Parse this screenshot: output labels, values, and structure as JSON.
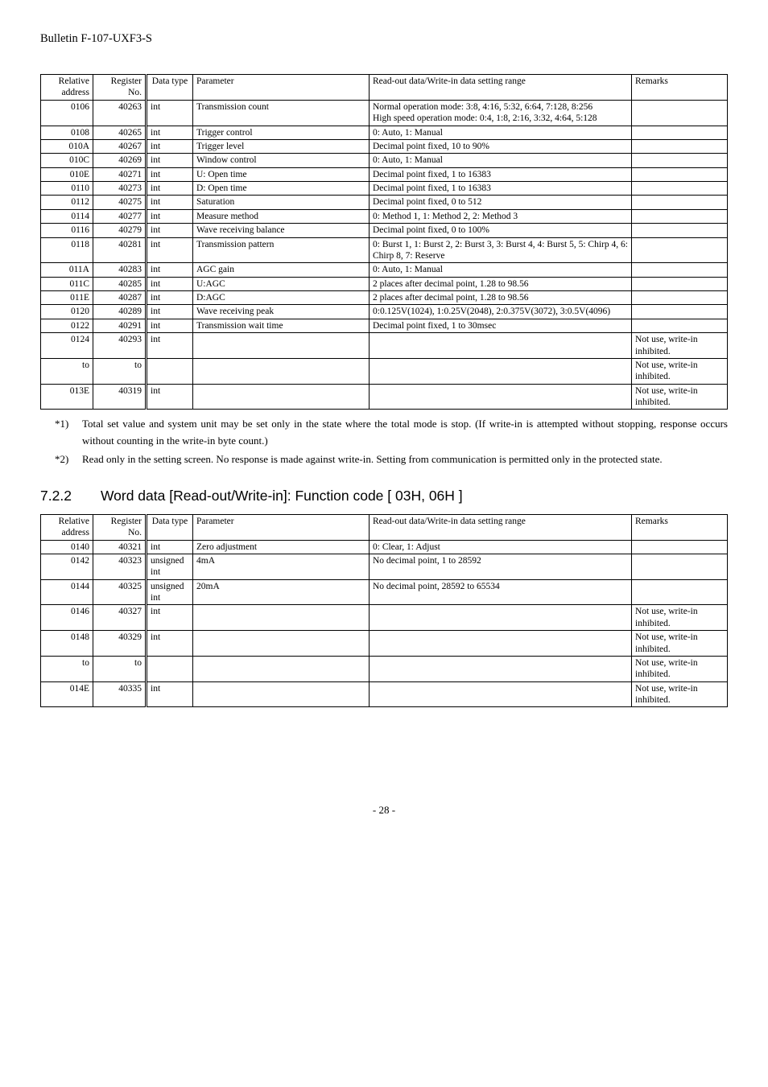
{
  "header": "Bulletin F-107-UXF3-S",
  "table1": {
    "columns": [
      "Relative address",
      "Register No.",
      "Data type",
      "Parameter",
      "Read-out data/Write-in data    setting range",
      "Remarks"
    ],
    "rows": [
      {
        "addr": "0106",
        "reg": "40263",
        "type": "int",
        "param": "Transmission count",
        "readout": "Normal operation mode:    3:8, 4:16, 5:32, 6:64, 7:128, 8:256\nHigh speed operation mode:    0:4, 1:8, 2:16, 3:32, 4:64, 5:128",
        "remarks": ""
      },
      {
        "addr": "0108",
        "reg": "40265",
        "type": "int",
        "param": "Trigger control",
        "readout": "0: Auto, 1: Manual",
        "remarks": ""
      },
      {
        "addr": "010A",
        "reg": "40267",
        "type": "int",
        "param": "Trigger level",
        "readout": "Decimal point fixed, 10 to 90%",
        "remarks": ""
      },
      {
        "addr": "010C",
        "reg": "40269",
        "type": "int",
        "param": "Window control",
        "readout": "0: Auto, 1: Manual",
        "remarks": ""
      },
      {
        "addr": "010E",
        "reg": "40271",
        "type": "int",
        "param": "U: Open time",
        "readout": "Decimal point fixed, 1 to 16383",
        "remarks": ""
      },
      {
        "addr": "0110",
        "reg": "40273",
        "type": "int",
        "param": "D: Open time",
        "readout": "Decimal point fixed, 1 to 16383",
        "remarks": ""
      },
      {
        "addr": "0112",
        "reg": "40275",
        "type": "int",
        "param": "Saturation",
        "readout": "Decimal point fixed, 0 to 512",
        "remarks": ""
      },
      {
        "addr": "0114",
        "reg": "40277",
        "type": "int",
        "param": "Measure method",
        "readout": "0: Method 1, 1: Method 2, 2: Method 3",
        "remarks": ""
      },
      {
        "addr": "0116",
        "reg": "40279",
        "type": "int",
        "param": "Wave receiving balance",
        "readout": "Decimal point fixed, 0 to 100%",
        "remarks": ""
      },
      {
        "addr": "0118",
        "reg": "40281",
        "type": "int",
        "param": "Transmission pattern",
        "readout": "0: Burst 1, 1: Burst 2, 2: Burst 3, 3: Burst 4, 4: Burst 5, 5: Chirp 4, 6: Chirp 8, 7: Reserve",
        "remarks": ""
      },
      {
        "addr": "011A",
        "reg": "40283",
        "type": "int",
        "param": "AGC gain",
        "readout": "0: Auto, 1: Manual",
        "remarks": ""
      },
      {
        "addr": "011C",
        "reg": "40285",
        "type": "int",
        "param": "U:AGC",
        "readout": "2 places after decimal point, 1.28 to 98.56",
        "remarks": ""
      },
      {
        "addr": "011E",
        "reg": "40287",
        "type": "int",
        "param": "D:AGC",
        "readout": "2 places after decimal point, 1.28 to 98.56",
        "remarks": ""
      },
      {
        "addr": "0120",
        "reg": "40289",
        "type": "int",
        "param": "Wave receiving peak",
        "readout": "0:0.125V(1024), 1:0.25V(2048), 2:0.375V(3072), 3:0.5V(4096)",
        "remarks": ""
      },
      {
        "addr": "0122",
        "reg": "40291",
        "type": "int",
        "param": "Transmission wait time",
        "readout": "Decimal point fixed, 1 to 30msec",
        "remarks": ""
      },
      {
        "addr": "0124",
        "reg": "40293",
        "type": "int",
        "param": "",
        "readout": "",
        "remarks": "Not use, write-in inhibited."
      },
      {
        "addr": "to",
        "reg": "to",
        "type": "",
        "param": "",
        "readout": "",
        "remarks": "Not use, write-in inhibited."
      },
      {
        "addr": "013E",
        "reg": "40319",
        "type": "int",
        "param": "",
        "readout": "",
        "remarks": "Not use, write-in inhibited."
      }
    ]
  },
  "notes": [
    {
      "tag": "*1)",
      "body": "Total set value and system unit may be set only in the state where the total mode is stop.    (If write-in is attempted without stopping, response occurs without counting in the write-in byte count.)"
    },
    {
      "tag": "*2)",
      "body": "Read only in the setting screen.   No response is made against write-in.   Setting from communication is permitted only in the protected state."
    }
  ],
  "section": {
    "num": "7.2.2",
    "title": "Word data [Read-out/Write-in]: Function code [ 03H, 06H ]"
  },
  "table2": {
    "columns": [
      "Relative address",
      "Register No.",
      "Data type",
      "Parameter",
      "Read-out data/Write-in data    setting range",
      "Remarks"
    ],
    "rows": [
      {
        "addr": "0140",
        "reg": "40321",
        "type": "int",
        "param": "Zero adjustment",
        "readout": "0: Clear, 1: Adjust",
        "remarks": ""
      },
      {
        "addr": "0142",
        "reg": "40323",
        "type": "unsigned int",
        "param": "4mA",
        "readout": "No decimal point, 1 to 28592",
        "remarks": ""
      },
      {
        "addr": "0144",
        "reg": "40325",
        "type": "unsigned int",
        "param": "20mA",
        "readout": "No decimal point, 28592 to 65534",
        "remarks": ""
      },
      {
        "addr": "0146",
        "reg": "40327",
        "type": "int",
        "param": "",
        "readout": "",
        "remarks": "Not use, write-in inhibited."
      },
      {
        "addr": "0148",
        "reg": "40329",
        "type": "int",
        "param": "",
        "readout": "",
        "remarks": "Not use, write-in inhibited."
      },
      {
        "addr": "to",
        "reg": "to",
        "type": "",
        "param": "",
        "readout": "",
        "remarks": "Not use, write-in inhibited."
      },
      {
        "addr": "014E",
        "reg": "40335",
        "type": "int",
        "param": "",
        "readout": "",
        "remarks": "Not use, write-in inhibited."
      }
    ]
  },
  "pageNumber": "- 28 -"
}
